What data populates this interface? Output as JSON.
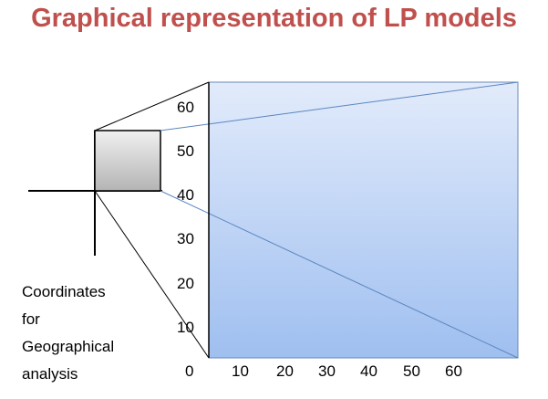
{
  "title": "Graphical representation of LP models",
  "caption": {
    "lines": [
      "Coordinates",
      "for",
      "Geographical",
      "analysis"
    ]
  },
  "axes": {
    "y_ticks": [
      "60",
      "50",
      "40",
      "30",
      "20",
      "10",
      "0"
    ],
    "x_ticks": [
      "10",
      "20",
      "30",
      "40",
      "50",
      "60"
    ]
  },
  "colors": {
    "title": "#c0504d",
    "plot_fill_top": "#e2ebfb",
    "plot_fill_bottom": "#9fbff0",
    "plot_border": "#6a8ab8",
    "zoom_box_fill": "#bdbdbd",
    "projection_line": "#5b86c0"
  }
}
